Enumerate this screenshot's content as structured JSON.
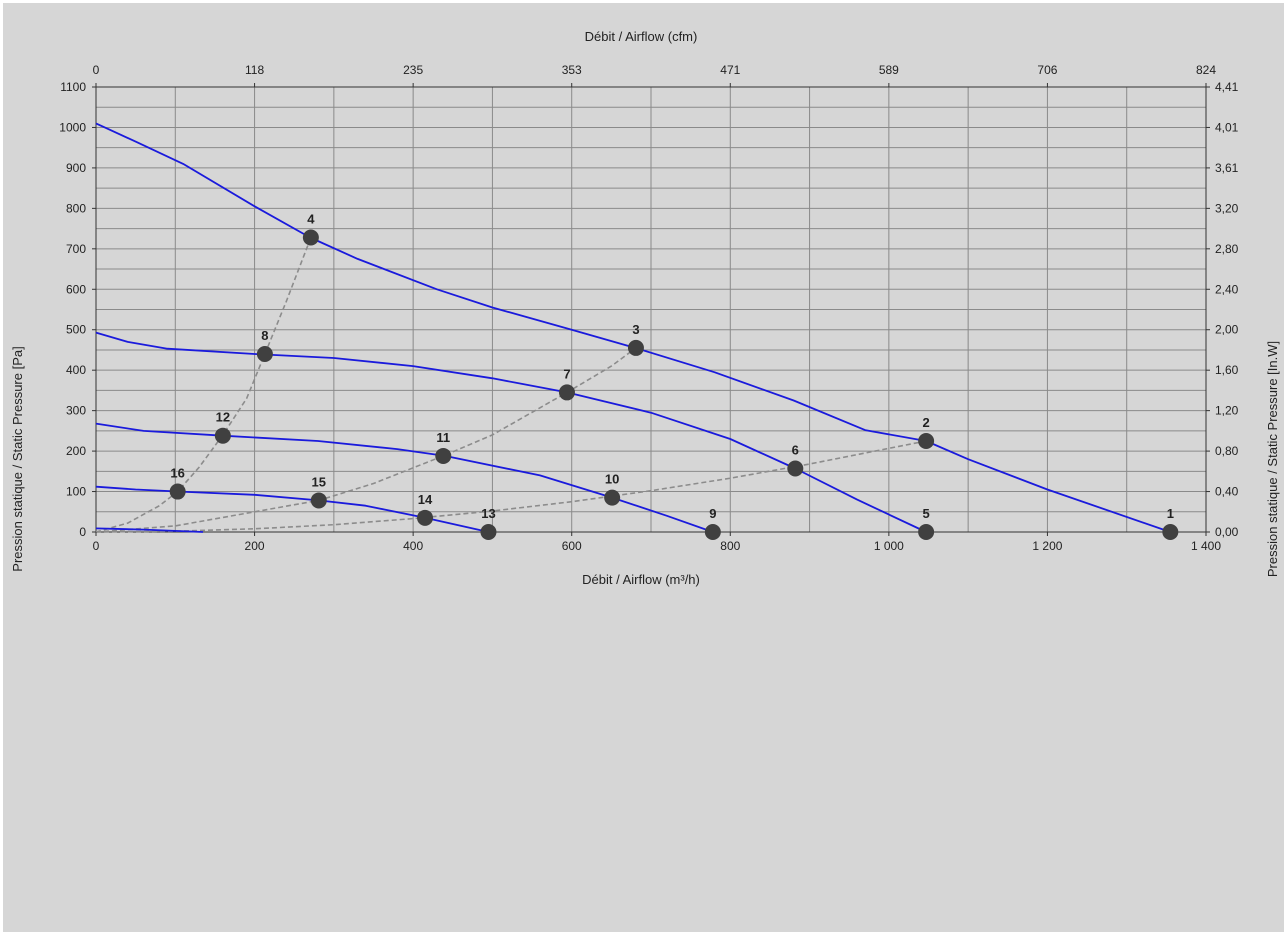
{
  "chart_data": {
    "type": "line",
    "x_bottom_label": "Débit / Airflow (m³/h)",
    "x_top_label": "Débit / Airflow (cfm)",
    "y_left_label": "Pression statique / Static Pressure [Pa]",
    "y_right_label": "Pression statique / Static Pressure [In.W]",
    "xlim": [
      0,
      1400
    ],
    "ylim": [
      0,
      1100
    ],
    "x_ticks": [
      {
        "v": 0,
        "label": "0"
      },
      {
        "v": 200,
        "label": "200"
      },
      {
        "v": 400,
        "label": "400"
      },
      {
        "v": 600,
        "label": "600"
      },
      {
        "v": 800,
        "label": "800"
      },
      {
        "v": 1000,
        "label": "1 000"
      },
      {
        "v": 1200,
        "label": "1 200"
      },
      {
        "v": 1400,
        "label": "1 400"
      }
    ],
    "x_top_ticks": [
      {
        "v": 0,
        "label": "0"
      },
      {
        "v": 200,
        "label": "118"
      },
      {
        "v": 400,
        "label": "235"
      },
      {
        "v": 600,
        "label": "353"
      },
      {
        "v": 800,
        "label": "471"
      },
      {
        "v": 1000,
        "label": "589"
      },
      {
        "v": 1200,
        "label": "706"
      },
      {
        "v": 1400,
        "label": "824"
      }
    ],
    "y_ticks": [
      {
        "v": 0,
        "label": "0"
      },
      {
        "v": 100,
        "label": "100"
      },
      {
        "v": 200,
        "label": "200"
      },
      {
        "v": 300,
        "label": "300"
      },
      {
        "v": 400,
        "label": "400"
      },
      {
        "v": 500,
        "label": "500"
      },
      {
        "v": 600,
        "label": "600"
      },
      {
        "v": 700,
        "label": "700"
      },
      {
        "v": 800,
        "label": "800"
      },
      {
        "v": 900,
        "label": "900"
      },
      {
        "v": 1000,
        "label": "1000"
      },
      {
        "v": 1100,
        "label": "1100"
      }
    ],
    "y_right_ticks": [
      {
        "v": 0,
        "label": "0,00"
      },
      {
        "v": 100,
        "label": "0,40"
      },
      {
        "v": 200,
        "label": "0,80"
      },
      {
        "v": 300,
        "label": "1,20"
      },
      {
        "v": 400,
        "label": "1,60"
      },
      {
        "v": 500,
        "label": "2,00"
      },
      {
        "v": 600,
        "label": "2,40"
      },
      {
        "v": 700,
        "label": "2,80"
      },
      {
        "v": 800,
        "label": "3,20"
      },
      {
        "v": 900,
        "label": "3,61"
      },
      {
        "v": 1000,
        "label": "4,01"
      },
      {
        "v": 1100,
        "label": "4,41"
      }
    ],
    "grid": true,
    "colors": {
      "fan_curve": "#1a1adc",
      "system_curve": "#8c8c8c",
      "point": "#404040",
      "plot_bg": "#d6d6d6",
      "grid": "#8a8a8a"
    },
    "fan_curves": [
      {
        "x": [
          0,
          50,
          110,
          200,
          270,
          330,
          430,
          500,
          600,
          680,
          780,
          880,
          970,
          1047,
          1100,
          1200,
          1355
        ],
        "y": [
          1010,
          965,
          910,
          805,
          728,
          675,
          600,
          555,
          500,
          455,
          395,
          325,
          252,
          225,
          180,
          105,
          0
        ]
      },
      {
        "x": [
          0,
          40,
          90,
          200,
          300,
          400,
          500,
          594,
          700,
          800,
          882,
          960,
          1047
        ],
        "y": [
          493,
          470,
          453,
          440,
          430,
          410,
          380,
          345,
          295,
          230,
          157,
          80,
          0
        ]
      },
      {
        "x": [
          0,
          60,
          160,
          280,
          380,
          440,
          560,
          651,
          720,
          778
        ],
        "y": [
          268,
          250,
          238,
          225,
          205,
          188,
          140,
          85,
          40,
          0
        ]
      },
      {
        "x": [
          0,
          50,
          103,
          200,
          281,
          340,
          415,
          495
        ],
        "y": [
          112,
          105,
          100,
          92,
          78,
          65,
          35,
          0
        ]
      },
      {
        "x": [
          0,
          60,
          135
        ],
        "y": [
          9,
          6,
          0
        ]
      }
    ],
    "system_curves": [
      {
        "x": [
          0,
          100,
          200,
          300,
          400,
          500,
          600,
          700,
          800,
          900,
          1047
        ],
        "y": [
          0,
          2,
          8,
          18,
          33,
          52,
          75,
          102,
          133,
          168,
          225
        ]
      },
      {
        "x": [
          0,
          100,
          200,
          281,
          350,
          438,
          500,
          594,
          650,
          681
        ],
        "y": [
          0,
          15,
          50,
          78,
          120,
          188,
          240,
          345,
          410,
          455
        ]
      },
      {
        "x": [
          0,
          40,
          80,
          103,
          130,
          160,
          190,
          213,
          240,
          271
        ],
        "y": [
          0,
          22,
          65,
          100,
          160,
          240,
          330,
          440,
          570,
          728
        ]
      }
    ],
    "points": [
      {
        "label": "1",
        "x": 1355,
        "y": 0
      },
      {
        "label": "2",
        "x": 1047,
        "y": 225
      },
      {
        "label": "3",
        "x": 681,
        "y": 455
      },
      {
        "label": "4",
        "x": 271,
        "y": 728
      },
      {
        "label": "5",
        "x": 1047,
        "y": 0
      },
      {
        "label": "6",
        "x": 882,
        "y": 157
      },
      {
        "label": "7",
        "x": 594,
        "y": 345
      },
      {
        "label": "8",
        "x": 213,
        "y": 440
      },
      {
        "label": "9",
        "x": 778,
        "y": 0
      },
      {
        "label": "10",
        "x": 651,
        "y": 85
      },
      {
        "label": "11",
        "x": 438,
        "y": 188
      },
      {
        "label": "12",
        "x": 160,
        "y": 238
      },
      {
        "label": "13",
        "x": 495,
        "y": 0
      },
      {
        "label": "14",
        "x": 415,
        "y": 35
      },
      {
        "label": "15",
        "x": 281,
        "y": 78
      },
      {
        "label": "16",
        "x": 103,
        "y": 100
      }
    ]
  }
}
